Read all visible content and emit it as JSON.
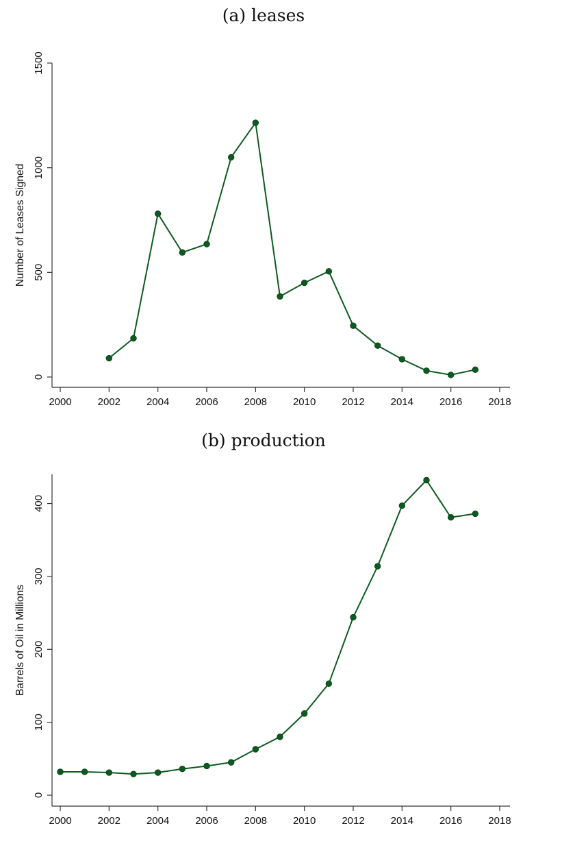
{
  "chart_data": [
    {
      "type": "line",
      "title": "(a) leases",
      "xlabel": "",
      "ylabel": "Number of Leases Signed",
      "xlim": [
        2000,
        2018
      ],
      "ylim": [
        0,
        1500
      ],
      "xticks": [
        2000,
        2002,
        2004,
        2006,
        2008,
        2010,
        2012,
        2014,
        2016,
        2018
      ],
      "yticks": [
        0,
        500,
        1000,
        1500
      ],
      "color": "#0d5a1f",
      "grid": false,
      "series": [
        {
          "x": [
            2002,
            2003,
            2004,
            2005,
            2006,
            2007,
            2008,
            2009,
            2010,
            2011,
            2012,
            2013,
            2014,
            2015,
            2016,
            2017
          ],
          "y": [
            90,
            185,
            780,
            595,
            635,
            1050,
            1215,
            385,
            450,
            505,
            245,
            150,
            85,
            30,
            10,
            35
          ]
        }
      ]
    },
    {
      "type": "line",
      "title": "(b) production",
      "xlabel": "",
      "ylabel": "Barrels of Oil in Millions",
      "xlim": [
        2000,
        2018
      ],
      "ylim": [
        0,
        440
      ],
      "xticks": [
        2000,
        2002,
        2004,
        2006,
        2008,
        2010,
        2012,
        2014,
        2016,
        2018
      ],
      "yticks": [
        0,
        100,
        200,
        300,
        400
      ],
      "color": "#0d5a1f",
      "grid": false,
      "series": [
        {
          "x": [
            2000,
            2001,
            2002,
            2003,
            2004,
            2005,
            2006,
            2007,
            2008,
            2009,
            2010,
            2011,
            2012,
            2013,
            2014,
            2015,
            2016,
            2017
          ],
          "y": [
            32,
            32,
            31,
            29,
            31,
            36,
            40,
            45,
            63,
            80,
            112,
            153,
            244,
            314,
            397,
            432,
            381,
            386
          ]
        }
      ]
    }
  ]
}
